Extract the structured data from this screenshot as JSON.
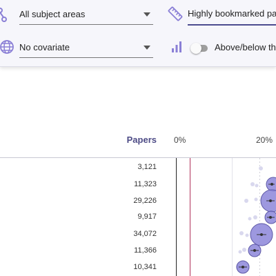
{
  "controls": {
    "subject_select": {
      "value": "All subject areas"
    },
    "sort_input": {
      "value": "Highly bookmarked pa"
    },
    "covariate_select": {
      "value": "No covariate"
    },
    "toggle": {
      "label": "Above/below th",
      "state": "off"
    }
  },
  "table": {
    "papers_header": "Papers",
    "axis_ticks": [
      "0%",
      "20%"
    ],
    "rows": [
      {
        "papers": "3,121"
      },
      {
        "papers": "11,323"
      },
      {
        "papers": "29,226"
      },
      {
        "papers": "9,917"
      },
      {
        "papers": "34,072"
      },
      {
        "papers": "11,366"
      },
      {
        "papers": "10,341"
      }
    ]
  },
  "colors": {
    "accent": "#8c86d9",
    "reference_line": "#b0305a",
    "header_text": "#4d4b86"
  }
}
